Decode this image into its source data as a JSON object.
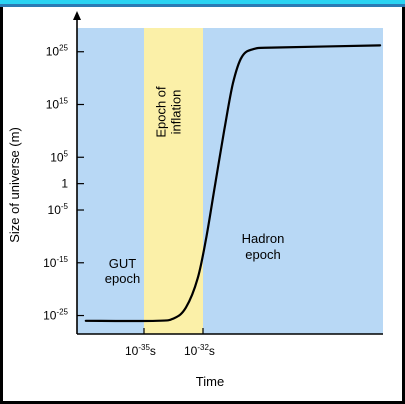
{
  "chart_data": {
    "type": "line",
    "title": "",
    "xlabel": "Time",
    "ylabel": "Size of universe (m)",
    "y_scale": "log",
    "y_ticks": [
      {
        "exp": 25,
        "label": "10",
        "sup": "25"
      },
      {
        "exp": 15,
        "label": "10",
        "sup": "15"
      },
      {
        "exp": 5,
        "label": "10",
        "sup": "5"
      },
      {
        "exp": 0,
        "label": "1",
        "sup": ""
      },
      {
        "exp": -5,
        "label": "10",
        "sup": "-5"
      },
      {
        "exp": -15,
        "label": "10",
        "sup": "-15"
      },
      {
        "exp": -25,
        "label": "10",
        "sup": "-25"
      }
    ],
    "x_ticks": [
      {
        "value": -35,
        "label": "10",
        "sup": "-35",
        "unit": "s"
      },
      {
        "value": -32,
        "label": "10",
        "sup": "-32",
        "unit": "s"
      }
    ],
    "regions": [
      {
        "name": "GUT epoch",
        "lines": [
          "GUT",
          "epoch"
        ],
        "color": "#b8d8f5"
      },
      {
        "name": "Epoch of inflation",
        "lines": [
          "Epoch of",
          "inflation"
        ],
        "color": "#fbf0a8"
      },
      {
        "name": "Hadron epoch",
        "lines": [
          "Hadron",
          "epoch"
        ],
        "color": "#b8d8f5"
      }
    ],
    "series": [
      {
        "line_color": "#000000",
        "points": [
          {
            "x": -38.0,
            "y": -26.0
          },
          {
            "x": -35.6,
            "y": -26.0
          },
          {
            "x": -35.0,
            "y": -25.5
          },
          {
            "x": -34.6,
            "y": -23.5
          },
          {
            "x": -34.2,
            "y": -18.0
          },
          {
            "x": -33.9,
            "y": -10.0
          },
          {
            "x": -33.6,
            "y": 0.0
          },
          {
            "x": -33.3,
            "y": 10.0
          },
          {
            "x": -33.0,
            "y": 19.0
          },
          {
            "x": -32.7,
            "y": 24.0
          },
          {
            "x": -32.3,
            "y": 25.5
          },
          {
            "x": -31.5,
            "y": 25.8
          },
          {
            "x": -28.0,
            "y": 26.2
          }
        ]
      }
    ]
  }
}
